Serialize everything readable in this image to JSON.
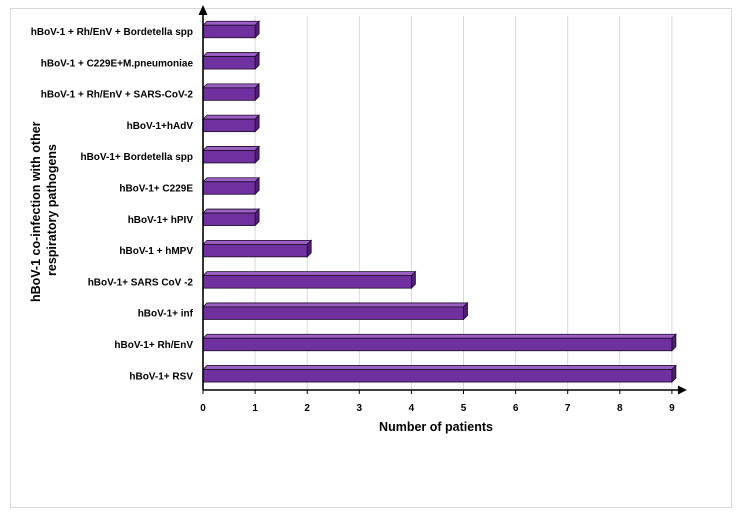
{
  "chart_data": {
    "type": "bar",
    "orientation": "horizontal",
    "categories": [
      "hBoV-1 + Rh/EnV + Bordetella spp",
      "hBoV-1 + C229E+M.pneumoniae",
      "hBoV-1 + Rh/EnV + SARS-CoV-2",
      "hBoV-1+hAdV",
      "hBoV-1+ Bordetella spp",
      "hBoV-1+ C229E",
      "hBoV-1+ hPIV",
      "hBoV-1 + hMPV",
      "hBoV-1+ SARS CoV -2",
      "hBoV-1+ inf",
      "hBoV-1+ Rh/EnV",
      "hBoV-1+ RSV"
    ],
    "values": [
      1,
      1,
      1,
      1,
      1,
      1,
      1,
      2,
      4,
      5,
      9,
      9
    ],
    "xlabel": "Number of patients",
    "ylabel_lines": [
      "hBoV-1 co-infection with other",
      "respiratory pathogens"
    ],
    "xlim": [
      0,
      9
    ],
    "xticks": [
      "0",
      "1",
      "2",
      "3",
      "4",
      "5",
      "6",
      "7",
      "8",
      "9"
    ],
    "grid": "vertical",
    "legend": "none",
    "bar_color": "#7030a0",
    "bar_top_color": "#9b5fc4",
    "bar_side_color": "#4f1f73",
    "bar_edge_color": "#1a0a26",
    "grid_color": "#d9d9d9"
  }
}
